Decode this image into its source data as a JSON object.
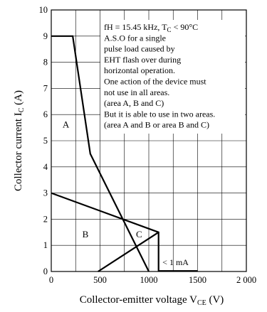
{
  "chart_data": {
    "type": "line",
    "xlabel": "Collector-emitter voltage",
    "xlabel_sym": "V",
    "xlabel_sub": "CE",
    "xlabel_unit": "(V)",
    "ylabel": "Collector current",
    "ylabel_sym": "I",
    "ylabel_sub": "C",
    "ylabel_unit": "(A)",
    "xlim": [
      0,
      2000
    ],
    "ylim": [
      0,
      10
    ],
    "x_ticks": [
      0,
      500,
      1000,
      1500,
      2000
    ],
    "x_tick_labels": [
      "0",
      "500",
      "1000",
      "1500",
      "2 000"
    ],
    "y_ticks": [
      0,
      1,
      2,
      3,
      4,
      5,
      6,
      7,
      8,
      9,
      10
    ],
    "y_tick_labels": [
      "0",
      "1",
      "2",
      "3",
      "4",
      "5",
      "6",
      "7",
      "8",
      "9",
      "10"
    ],
    "x_grid": [
      0,
      250,
      500,
      750,
      1000,
      1250,
      1500,
      1750,
      2000
    ],
    "y_grid": [
      0,
      1,
      2,
      3,
      4,
      5,
      6,
      7,
      8,
      9,
      10
    ],
    "grid": true,
    "series": [
      {
        "x": [
          0,
          220,
          400,
          1000
        ],
        "y": [
          9,
          9,
          4.5,
          0
        ]
      },
      {
        "x": [
          0,
          1100,
          1100
        ],
        "y": [
          3,
          1.5,
          0
        ]
      },
      {
        "x": [
          480,
          1100
        ],
        "y": [
          0,
          1.5
        ]
      },
      {
        "x": [
          1100,
          1500
        ],
        "y": [
          0.02,
          0.02
        ]
      }
    ],
    "regions": [
      {
        "label": "A",
        "x": 150,
        "y": 5.5
      },
      {
        "label": "B",
        "x": 350,
        "y": 1.3
      },
      {
        "label": "C",
        "x": 900,
        "y": 1.3
      }
    ],
    "annotations": [
      {
        "text": "< 1 mA",
        "x": 1140,
        "y": 0.25
      }
    ],
    "note": {
      "line1_prefix": "fH = 15.45 kHz, T",
      "line1_sub": "C",
      "line1_suffix": " < 90°C",
      "lines": [
        "A.S.O for a single",
        "pulse load caused by",
        "EHT flash over during",
        "horizontal operation.",
        "One action of the device must",
        "not use in all areas.",
        "(area A, B and C)",
        "But it is able to use in two areas.",
        "(area A and B or area B and C)"
      ]
    }
  }
}
